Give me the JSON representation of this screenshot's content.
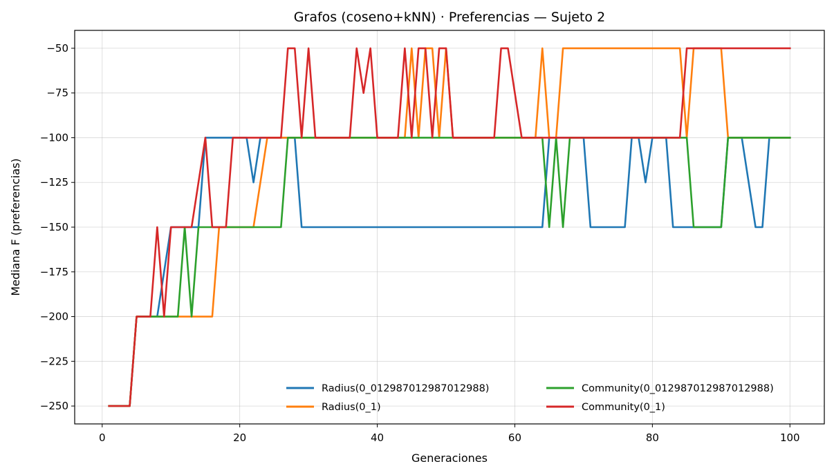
{
  "chart_data": {
    "type": "line",
    "title": "Grafos (coseno+kNN) · Preferencias — Sujeto 2",
    "xlabel": "Generaciones",
    "ylabel": "Mediana F (preferencias)",
    "xlim": [
      -4,
      105
    ],
    "ylim": [
      -260,
      -40
    ],
    "xticks": [
      0,
      20,
      40,
      60,
      80,
      100
    ],
    "yticks": [
      -250,
      -225,
      -200,
      -175,
      -150,
      -125,
      -100,
      -75,
      -50
    ],
    "grid": true,
    "legend": {
      "placement": "lower-right",
      "columns": 2
    },
    "x": [
      1,
      2,
      3,
      4,
      5,
      6,
      7,
      8,
      9,
      10,
      11,
      12,
      13,
      14,
      15,
      16,
      17,
      18,
      19,
      20,
      21,
      22,
      23,
      24,
      25,
      26,
      27,
      28,
      29,
      30,
      31,
      32,
      33,
      34,
      35,
      36,
      37,
      38,
      39,
      40,
      41,
      42,
      43,
      44,
      45,
      46,
      47,
      48,
      49,
      50,
      51,
      52,
      53,
      54,
      55,
      56,
      57,
      58,
      59,
      60,
      61,
      62,
      63,
      64,
      65,
      66,
      67,
      68,
      69,
      70,
      71,
      72,
      73,
      74,
      75,
      76,
      77,
      78,
      79,
      80,
      81,
      82,
      83,
      84,
      85,
      86,
      87,
      88,
      89,
      90,
      91,
      92,
      93,
      94,
      95,
      96,
      97,
      98,
      99,
      100
    ],
    "series": [
      {
        "name": "Radius(0_012987012987012988)",
        "color": "#1f77b4",
        "values": [
          -250,
          -250,
          -250,
          -250,
          -200,
          -200,
          -200,
          -200,
          -175,
          -150,
          -150,
          -150,
          -150,
          -150,
          -100,
          -100,
          -100,
          -100,
          -100,
          -100,
          -100,
          -125,
          -100,
          -100,
          -100,
          -100,
          -100,
          -100,
          -150,
          -150,
          -150,
          -150,
          -150,
          -150,
          -150,
          -150,
          -150,
          -150,
          -150,
          -150,
          -150,
          -150,
          -150,
          -150,
          -150,
          -150,
          -150,
          -150,
          -150,
          -150,
          -150,
          -150,
          -150,
          -150,
          -150,
          -150,
          -150,
          -150,
          -150,
          -150,
          -150,
          -150,
          -150,
          -150,
          -100,
          -100,
          -100,
          -100,
          -100,
          -100,
          -150,
          -150,
          -150,
          -150,
          -150,
          -150,
          -100,
          -100,
          -125,
          -100,
          -100,
          -100,
          -150,
          -150,
          -150,
          -150,
          -150,
          -150,
          -150,
          -150,
          -100,
          -100,
          -100,
          -125,
          -150,
          -150,
          -100,
          -100,
          -100,
          -100
        ]
      },
      {
        "name": "Radius(0_1)",
        "color": "#ff7f0e",
        "values": [
          -250,
          -250,
          -250,
          -250,
          -200,
          -200,
          -200,
          -200,
          -200,
          -200,
          -200,
          -200,
          -200,
          -200,
          -200,
          -200,
          -150,
          -150,
          -150,
          -150,
          -150,
          -150,
          -125,
          -100,
          -100,
          -100,
          -100,
          -100,
          -100,
          -100,
          -100,
          -100,
          -100,
          -100,
          -100,
          -100,
          -100,
          -100,
          -100,
          -100,
          -100,
          -100,
          -100,
          -100,
          -50,
          -100,
          -50,
          -50,
          -100,
          -50,
          -100,
          -100,
          -100,
          -100,
          -100,
          -100,
          -100,
          -100,
          -100,
          -100,
          -100,
          -100,
          -100,
          -50,
          -100,
          -100,
          -50,
          -50,
          -50,
          -50,
          -50,
          -50,
          -50,
          -50,
          -50,
          -50,
          -50,
          -50,
          -50,
          -50,
          -50,
          -50,
          -50,
          -50,
          -100,
          -50,
          -50,
          -50,
          -50,
          -50,
          -100,
          -100,
          -100,
          -100,
          -100,
          -100,
          -100,
          -100,
          -100,
          -100
        ]
      },
      {
        "name": "Community(0_012987012987012988)",
        "color": "#2ca02c",
        "values": [
          -250,
          -250,
          -250,
          -250,
          -200,
          -200,
          -200,
          -200,
          -200,
          -200,
          -200,
          -150,
          -200,
          -150,
          -150,
          -150,
          -150,
          -150,
          -150,
          -150,
          -150,
          -150,
          -150,
          -150,
          -150,
          -150,
          -100,
          -100,
          -100,
          -100,
          -100,
          -100,
          -100,
          -100,
          -100,
          -100,
          -100,
          -100,
          -100,
          -100,
          -100,
          -100,
          -100,
          -100,
          -100,
          -100,
          -100,
          -100,
          -100,
          -100,
          -100,
          -100,
          -100,
          -100,
          -100,
          -100,
          -100,
          -100,
          -100,
          -100,
          -100,
          -100,
          -100,
          -100,
          -150,
          -100,
          -150,
          -100,
          -100,
          -100,
          -100,
          -100,
          -100,
          -100,
          -100,
          -100,
          -100,
          -100,
          -100,
          -100,
          -100,
          -100,
          -100,
          -100,
          -100,
          -150,
          -150,
          -150,
          -150,
          -150,
          -100,
          -100,
          -100,
          -100,
          -100,
          -100,
          -100,
          -100,
          -100,
          -100
        ]
      },
      {
        "name": "Community(0_1)",
        "color": "#d62728",
        "values": [
          -250,
          -250,
          -250,
          -250,
          -200,
          -200,
          -200,
          -150,
          -200,
          -150,
          -150,
          -150,
          -150,
          -125,
          -100,
          -150,
          -150,
          -150,
          -100,
          -100,
          -100,
          -100,
          -100,
          -100,
          -100,
          -100,
          -50,
          -50,
          -100,
          -50,
          -100,
          -100,
          -100,
          -100,
          -100,
          -100,
          -50,
          -75,
          -50,
          -100,
          -100,
          -100,
          -100,
          -50,
          -100,
          -50,
          -50,
          -100,
          -50,
          -50,
          -100,
          -100,
          -100,
          -100,
          -100,
          -100,
          -100,
          -50,
          -50,
          -75,
          -100,
          -100,
          -100,
          -100,
          -100,
          -100,
          -100,
          -100,
          -100,
          -100,
          -100,
          -100,
          -100,
          -100,
          -100,
          -100,
          -100,
          -100,
          -100,
          -100,
          -100,
          -100,
          -100,
          -100,
          -50,
          -50,
          -50,
          -50,
          -50,
          -50,
          -50,
          -50,
          -50,
          -50,
          -50,
          -50,
          -50,
          -50,
          -50,
          -50
        ]
      }
    ]
  }
}
